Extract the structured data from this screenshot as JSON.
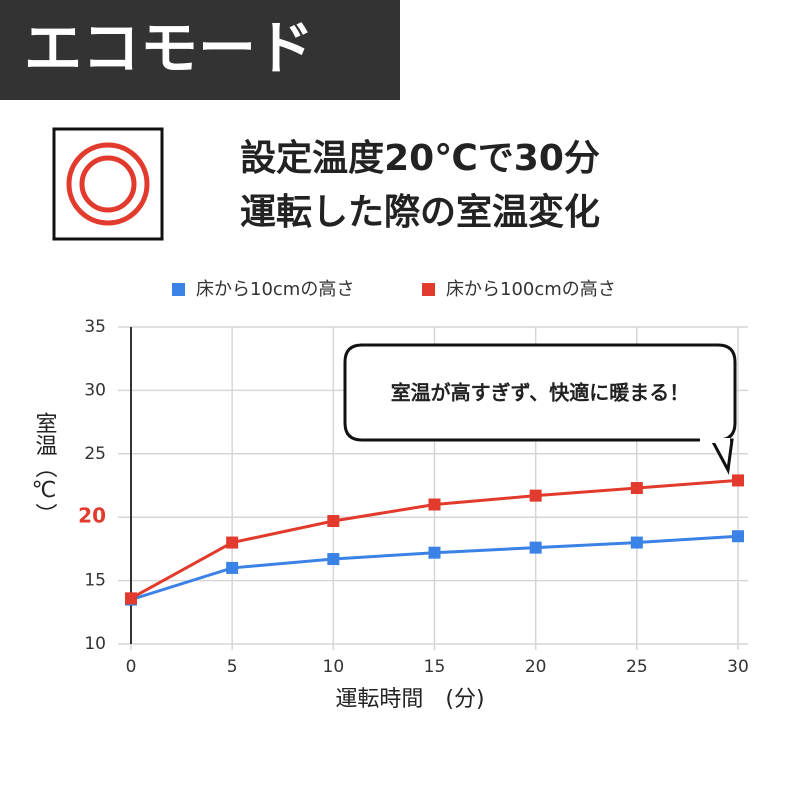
{
  "banner": "エコモード",
  "chart_data": {
    "type": "line",
    "title": [
      "設定温度20℃で30分",
      "運転した際の室温変化"
    ],
    "x": [
      0,
      5,
      10,
      15,
      20,
      25,
      30
    ],
    "series": [
      {
        "name": "床から10cmの高さ",
        "color": "#3b82e6",
        "values": [
          13.5,
          16.0,
          16.7,
          17.2,
          17.6,
          18.0,
          18.5
        ]
      },
      {
        "name": "床から100cmの高さ",
        "color": "#e23a2c",
        "values": [
          13.6,
          18.0,
          19.7,
          21.0,
          21.7,
          22.3,
          22.9
        ]
      }
    ],
    "xlim": [
      0,
      30
    ],
    "xticks": [
      0,
      5,
      10,
      15,
      20,
      25,
      30
    ],
    "ylim": [
      10,
      35
    ],
    "yticks": [
      10,
      15,
      20,
      25,
      30,
      35
    ],
    "highlighted_ytick": 20,
    "highlight_color": "#e23a2c",
    "grid": true,
    "x_label": "運転時間　(分)",
    "y_label": "室温（℃）",
    "annotation": "室温が高すぎず、快適に暖まる！"
  }
}
